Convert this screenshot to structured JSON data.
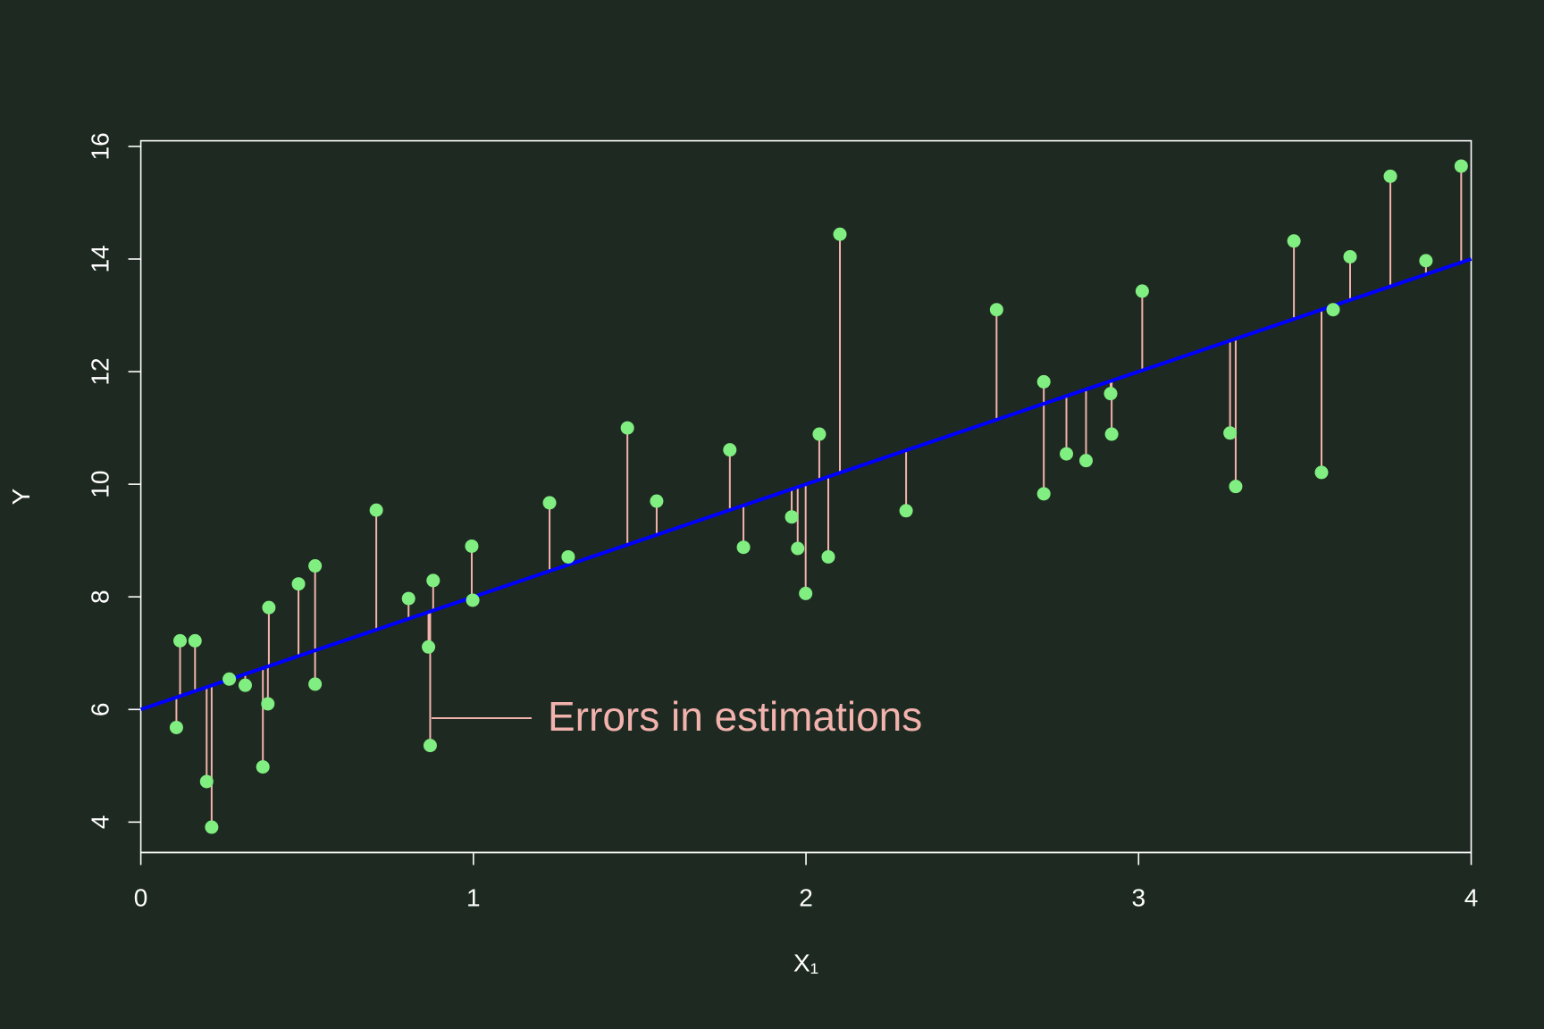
{
  "chart_data": {
    "type": "scatter",
    "xlabel": "X₁",
    "ylabel": "Y",
    "annotation": "Errors in estimations",
    "xlim": [
      0,
      4
    ],
    "ylim": [
      3.46,
      16.1
    ],
    "xticks": [
      0,
      1,
      2,
      3,
      4
    ],
    "yticks": [
      4,
      6,
      8,
      10,
      12,
      14,
      16
    ],
    "series": [
      {
        "color": "#80ee80",
        "residual_color": "#f2b2ad",
        "x": [
          0.107,
          0.118,
          0.163,
          0.198,
          0.213,
          0.266,
          0.314,
          0.367,
          0.382,
          0.385,
          0.474,
          0.524,
          0.524,
          0.708,
          0.805,
          0.865,
          0.87,
          0.879,
          0.995,
          0.998,
          1.229,
          1.285,
          1.463,
          1.551,
          1.771,
          1.812,
          1.957,
          1.975,
          1.999,
          2.04,
          2.067,
          2.102,
          2.301,
          2.573,
          2.715,
          2.715,
          2.783,
          2.842,
          2.916,
          2.919,
          3.011,
          3.275,
          3.292,
          3.467,
          3.55,
          3.585,
          3.636,
          3.757,
          3.864,
          3.97
        ],
        "y": [
          5.68,
          7.22,
          7.22,
          4.72,
          3.91,
          6.54,
          6.43,
          4.98,
          6.1,
          7.81,
          8.23,
          6.45,
          8.55,
          9.54,
          7.97,
          7.11,
          5.36,
          8.29,
          8.9,
          7.94,
          9.67,
          8.71,
          11.0,
          9.7,
          10.61,
          8.88,
          9.42,
          8.86,
          8.06,
          10.89,
          8.71,
          14.44,
          9.53,
          13.1,
          11.82,
          9.83,
          10.54,
          10.42,
          11.61,
          10.89,
          13.43,
          10.91,
          9.96,
          14.32,
          10.21,
          13.1,
          14.04,
          15.47,
          13.97,
          15.65
        ]
      }
    ],
    "fit_line": {
      "color": "#0000ff",
      "x": [
        0,
        4
      ],
      "y": [
        6,
        14
      ]
    }
  }
}
